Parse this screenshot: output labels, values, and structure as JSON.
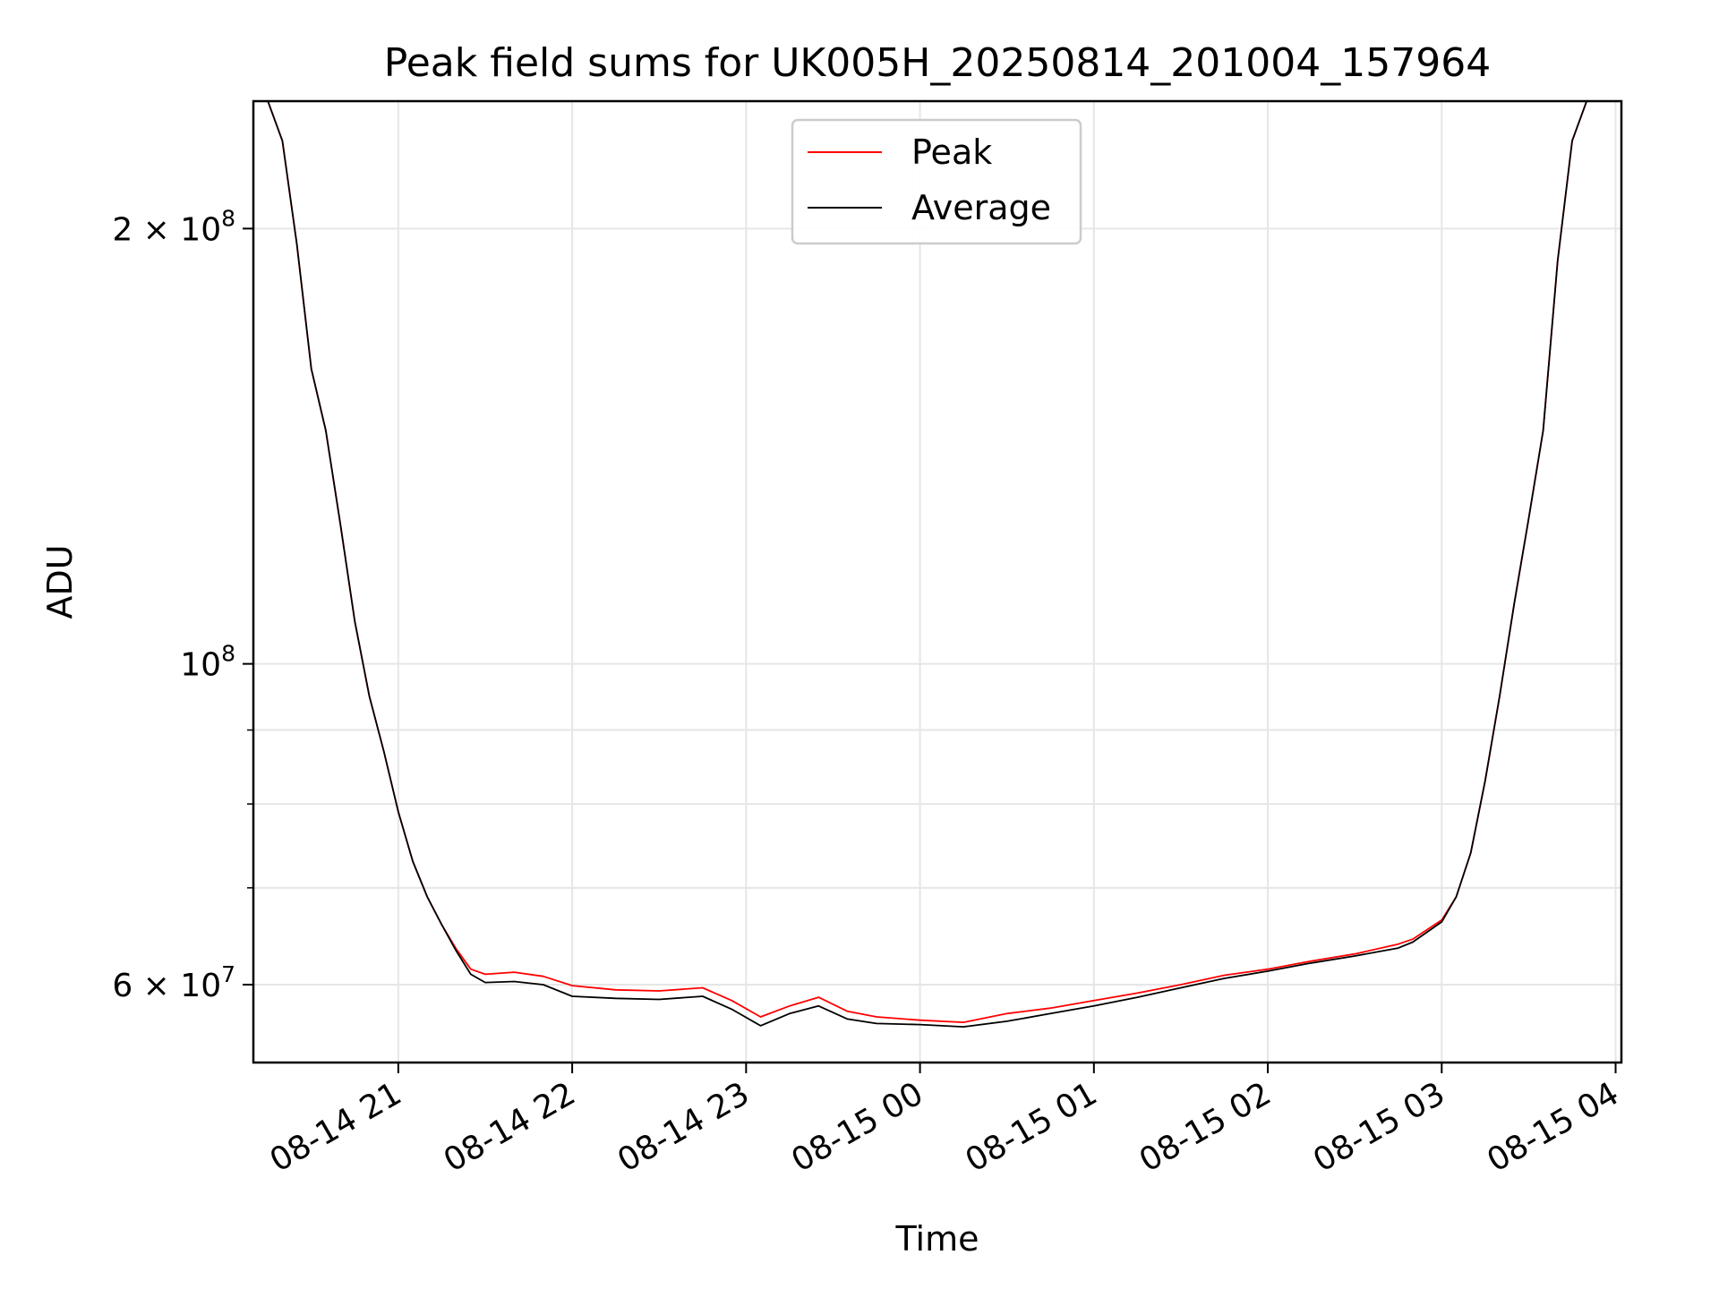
{
  "chart_data": {
    "type": "line",
    "title": "Peak field sums for UK005H_20250814_201004_157964",
    "xlabel": "Time",
    "ylabel": "ADU",
    "yscale": "log",
    "ylim": [
      53000000,
      245000000
    ],
    "xlim": [
      "2025-08-14 20:10",
      "2025-08-15 04:02"
    ],
    "grid": true,
    "legend_position": "top-center",
    "x_ticks": [
      {
        "t": "2025-08-14 21:00",
        "label": "08-14 21"
      },
      {
        "t": "2025-08-14 22:00",
        "label": "08-14 22"
      },
      {
        "t": "2025-08-14 23:00",
        "label": "08-14 23"
      },
      {
        "t": "2025-08-15 00:00",
        "label": "08-15 00"
      },
      {
        "t": "2025-08-15 01:00",
        "label": "08-15 01"
      },
      {
        "t": "2025-08-15 02:00",
        "label": "08-15 02"
      },
      {
        "t": "2025-08-15 03:00",
        "label": "08-15 03"
      },
      {
        "t": "2025-08-15 04:00",
        "label": "08-15 04"
      }
    ],
    "y_major_ticks": [
      {
        "value": 60000000,
        "mantissa": "6",
        "exponent": "7"
      },
      {
        "value": 100000000,
        "mantissa": "",
        "exponent": "8"
      },
      {
        "value": 200000000,
        "mantissa": "2",
        "exponent": "8"
      }
    ],
    "y_minor_ticks": [
      70000000,
      80000000,
      90000000
    ],
    "series": [
      {
        "name": "Peak",
        "color": "#ff0000",
        "x": [
          "2025-08-14 20:10",
          "2025-08-14 20:15",
          "2025-08-14 20:20",
          "2025-08-14 20:25",
          "2025-08-14 20:30",
          "2025-08-14 20:35",
          "2025-08-14 20:40",
          "2025-08-14 20:45",
          "2025-08-14 20:50",
          "2025-08-14 20:55",
          "2025-08-14 21:00",
          "2025-08-14 21:05",
          "2025-08-14 21:10",
          "2025-08-14 21:15",
          "2025-08-14 21:20",
          "2025-08-14 21:25",
          "2025-08-14 21:30",
          "2025-08-14 21:40",
          "2025-08-14 21:50",
          "2025-08-14 22:00",
          "2025-08-14 22:15",
          "2025-08-14 22:30",
          "2025-08-14 22:45",
          "2025-08-14 22:55",
          "2025-08-14 23:05",
          "2025-08-14 23:15",
          "2025-08-14 23:25",
          "2025-08-14 23:35",
          "2025-08-14 23:45",
          "2025-08-15 00:00",
          "2025-08-15 00:15",
          "2025-08-15 00:30",
          "2025-08-15 00:45",
          "2025-08-15 01:00",
          "2025-08-15 01:15",
          "2025-08-15 01:30",
          "2025-08-15 01:45",
          "2025-08-15 02:00",
          "2025-08-15 02:15",
          "2025-08-15 02:30",
          "2025-08-15 02:45",
          "2025-08-15 02:50",
          "2025-08-15 03:00",
          "2025-08-15 03:05",
          "2025-08-15 03:10",
          "2025-08-15 03:15",
          "2025-08-15 03:20",
          "2025-08-15 03:25",
          "2025-08-15 03:30",
          "2025-08-15 03:35",
          "2025-08-15 03:40",
          "2025-08-15 03:45",
          "2025-08-15 03:50",
          "2025-08-15 04:02"
        ],
        "y": [
          245000000,
          245000000,
          230000000,
          195000000,
          160000000,
          145000000,
          125000000,
          107000000,
          95000000,
          87000000,
          79000000,
          73000000,
          69000000,
          66000000,
          63500000,
          61500000,
          61000000,
          61200000,
          60800000,
          59900000,
          59500000,
          59400000,
          59700000,
          58500000,
          57000000,
          58000000,
          58800000,
          57500000,
          57000000,
          56700000,
          56500000,
          57300000,
          57800000,
          58500000,
          59200000,
          60000000,
          60900000,
          61500000,
          62300000,
          63000000,
          64000000,
          64500000,
          66500000,
          69000000,
          74000000,
          83000000,
          95000000,
          110000000,
          126000000,
          145000000,
          190000000,
          230000000,
          245000000,
          245000000
        ]
      },
      {
        "name": "Average",
        "color": "#000000",
        "x": [
          "2025-08-14 20:10",
          "2025-08-14 20:15",
          "2025-08-14 20:20",
          "2025-08-14 20:25",
          "2025-08-14 20:30",
          "2025-08-14 20:35",
          "2025-08-14 20:40",
          "2025-08-14 20:45",
          "2025-08-14 20:50",
          "2025-08-14 20:55",
          "2025-08-14 21:00",
          "2025-08-14 21:05",
          "2025-08-14 21:10",
          "2025-08-14 21:15",
          "2025-08-14 21:20",
          "2025-08-14 21:25",
          "2025-08-14 21:30",
          "2025-08-14 21:40",
          "2025-08-14 21:50",
          "2025-08-14 22:00",
          "2025-08-14 22:15",
          "2025-08-14 22:30",
          "2025-08-14 22:45",
          "2025-08-14 22:55",
          "2025-08-14 23:05",
          "2025-08-14 23:15",
          "2025-08-14 23:25",
          "2025-08-14 23:35",
          "2025-08-14 23:45",
          "2025-08-15 00:00",
          "2025-08-15 00:15",
          "2025-08-15 00:30",
          "2025-08-15 00:45",
          "2025-08-15 01:00",
          "2025-08-15 01:15",
          "2025-08-15 01:30",
          "2025-08-15 01:45",
          "2025-08-15 02:00",
          "2025-08-15 02:15",
          "2025-08-15 02:30",
          "2025-08-15 02:45",
          "2025-08-15 02:50",
          "2025-08-15 03:00",
          "2025-08-15 03:05",
          "2025-08-15 03:10",
          "2025-08-15 03:15",
          "2025-08-15 03:20",
          "2025-08-15 03:25",
          "2025-08-15 03:30",
          "2025-08-15 03:35",
          "2025-08-15 03:40",
          "2025-08-15 03:45",
          "2025-08-15 03:50",
          "2025-08-15 04:02"
        ],
        "y": [
          245000000,
          245000000,
          230000000,
          195000000,
          160000000,
          145000000,
          125000000,
          107000000,
          95000000,
          87000000,
          79000000,
          73000000,
          69000000,
          66000000,
          63300000,
          61000000,
          60200000,
          60300000,
          60000000,
          58900000,
          58700000,
          58600000,
          58900000,
          57700000,
          56200000,
          57300000,
          58000000,
          56800000,
          56400000,
          56300000,
          56100000,
          56600000,
          57300000,
          58000000,
          58800000,
          59700000,
          60600000,
          61300000,
          62100000,
          62800000,
          63600000,
          64200000,
          66300000,
          69000000,
          74000000,
          83000000,
          95000000,
          110000000,
          126000000,
          145000000,
          190000000,
          230000000,
          245000000,
          245000000
        ]
      }
    ]
  }
}
